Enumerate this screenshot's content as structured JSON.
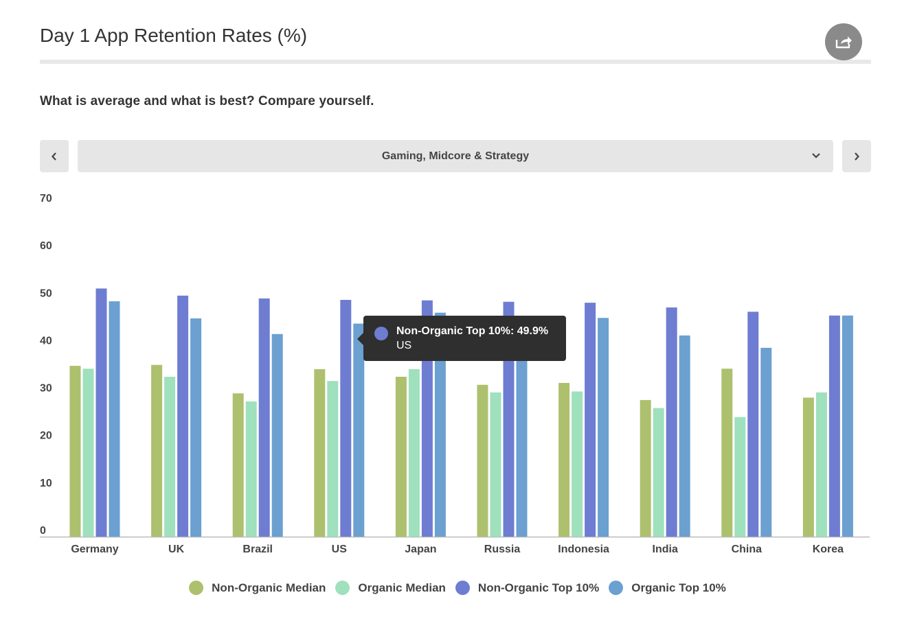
{
  "header": {
    "title": "Day 1 App Retention Rates (%)",
    "subtitle": "What is average and what is best? Compare yourself."
  },
  "selector": {
    "selected": "Gaming, Midcore & Strategy",
    "prev_icon": "chevron-left-icon",
    "next_icon": "chevron-right-icon",
    "dropdown_icon": "chevron-down-icon"
  },
  "share": {
    "icon": "share-icon"
  },
  "colors": {
    "non_organic_median": "#adc06e",
    "organic_median": "#9fe0bd",
    "non_organic_top": "#6e7dd1",
    "organic_top": "#6ba0d0"
  },
  "tooltip": {
    "line1": "Non-Organic Top 10%: 49.9%",
    "line2": "US"
  },
  "chart_data": {
    "type": "bar",
    "title": "Day 1 App Retention Rates (%)",
    "xlabel": "",
    "ylabel": "",
    "ylim": [
      0,
      70
    ],
    "yticks": [
      0,
      10,
      20,
      30,
      40,
      50,
      60,
      70
    ],
    "grid": false,
    "legend_position": "bottom",
    "categories": [
      "Germany",
      "UK",
      "Brazil",
      "US",
      "Japan",
      "Russia",
      "Indonesia",
      "India",
      "China",
      "Korea"
    ],
    "series": [
      {
        "name": "Non-Organic Median",
        "color": "#adc06e",
        "values": [
          36,
          36.2,
          30.2,
          35.3,
          33.7,
          32,
          32.4,
          28.8,
          35.4,
          29.3
        ]
      },
      {
        "name": "Organic Median",
        "color": "#9fe0bd",
        "values": [
          35.4,
          33.7,
          28.5,
          32.8,
          35.3,
          30.4,
          30.6,
          27.1,
          25.2,
          30.4
        ]
      },
      {
        "name": "Non-Organic Top 10%",
        "color": "#6e7dd1",
        "values": [
          52.3,
          50.8,
          50.2,
          49.9,
          49.8,
          49.5,
          49.3,
          48.3,
          47.4,
          46.6
        ]
      },
      {
        "name": "Organic Top 10%",
        "color": "#6ba0d0",
        "values": [
          49.6,
          46,
          42.7,
          44.9,
          47.2,
          38.5,
          46.1,
          42.4,
          39.8,
          46.6
        ]
      }
    ]
  }
}
